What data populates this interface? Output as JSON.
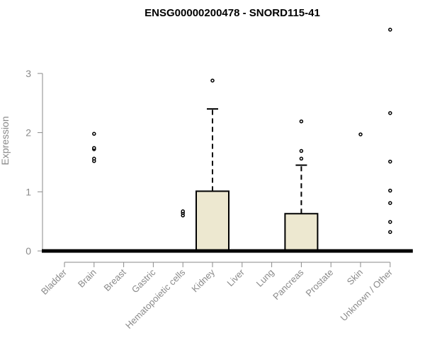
{
  "chart_data": {
    "type": "boxplot",
    "title": "ENSG00000200478 - SNORD115-41",
    "xlabel": "",
    "ylabel": "Expression",
    "ylim": [
      0,
      3.85
    ],
    "yticks": [
      0,
      1,
      2,
      3
    ],
    "colors": {
      "box_fill": "#ede8d0",
      "outline": "#000000",
      "axis": "#8a8a8a"
    },
    "categories": [
      "Bladder",
      "Brain",
      "Breast",
      "Gastric",
      "Hematopoietic cells",
      "Kidney",
      "Liver",
      "Lung",
      "Pancreas",
      "Prostate",
      "Skin",
      "Unknown / Other"
    ],
    "boxes": [
      {
        "category": "Bladder",
        "q1": 0,
        "median": 0,
        "q3": 0,
        "whisker_low": 0,
        "whisker_high": 0,
        "outliers": []
      },
      {
        "category": "Brain",
        "q1": 0,
        "median": 0,
        "q3": 0,
        "whisker_low": 0,
        "whisker_high": 0,
        "outliers": [
          1.52,
          1.56,
          1.72,
          1.74,
          1.98
        ]
      },
      {
        "category": "Breast",
        "q1": 0,
        "median": 0,
        "q3": 0,
        "whisker_low": 0,
        "whisker_high": 0,
        "outliers": []
      },
      {
        "category": "Gastric",
        "q1": 0,
        "median": 0,
        "q3": 0,
        "whisker_low": 0,
        "whisker_high": 0,
        "outliers": []
      },
      {
        "category": "Hematopoietic cells",
        "q1": 0,
        "median": 0,
        "q3": 0,
        "whisker_low": 0,
        "whisker_high": 0,
        "outliers": [
          0.6,
          0.64,
          0.67
        ]
      },
      {
        "category": "Kidney",
        "q1": 0,
        "median": 0,
        "q3": 1.01,
        "whisker_low": 0,
        "whisker_high": 2.4,
        "outliers": [
          2.88
        ]
      },
      {
        "category": "Liver",
        "q1": 0,
        "median": 0,
        "q3": 0,
        "whisker_low": 0,
        "whisker_high": 0,
        "outliers": []
      },
      {
        "category": "Lung",
        "q1": 0,
        "median": 0,
        "q3": 0,
        "whisker_low": 0,
        "whisker_high": 0,
        "outliers": []
      },
      {
        "category": "Pancreas",
        "q1": 0,
        "median": 0,
        "q3": 0.63,
        "whisker_low": 0,
        "whisker_high": 1.45,
        "outliers": [
          1.56,
          1.69,
          2.19
        ]
      },
      {
        "category": "Prostate",
        "q1": 0,
        "median": 0,
        "q3": 0,
        "whisker_low": 0,
        "whisker_high": 0,
        "outliers": []
      },
      {
        "category": "Skin",
        "q1": 0,
        "median": 0,
        "q3": 0,
        "whisker_low": 0,
        "whisker_high": 0,
        "outliers": [
          1.97
        ]
      },
      {
        "category": "Unknown / Other",
        "q1": 0,
        "median": 0,
        "q3": 0,
        "whisker_low": 0,
        "whisker_high": 0,
        "outliers": [
          0.32,
          0.49,
          0.81,
          1.02,
          1.51,
          2.33,
          3.74
        ]
      }
    ],
    "grid": false,
    "legend": "none"
  }
}
